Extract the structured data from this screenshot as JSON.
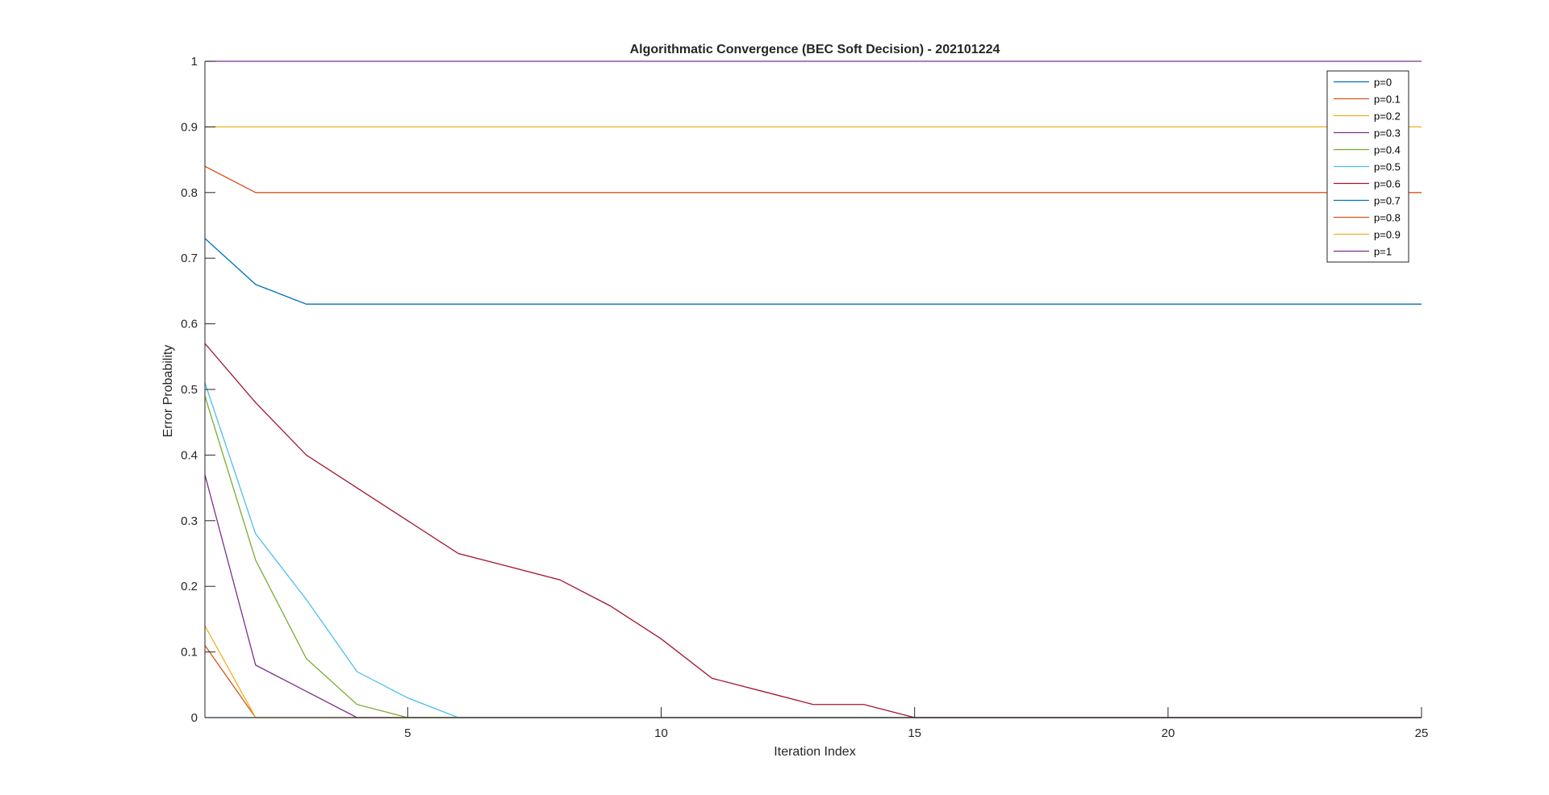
{
  "chart_data": {
    "type": "line",
    "title": "Algorithmatic Convergence (BEC Soft Decision) - 202101224",
    "xlabel": "Iteration Index",
    "ylabel": "Error Probability",
    "xlim": [
      1,
      25
    ],
    "ylim": [
      0,
      1
    ],
    "xticks": [
      5,
      10,
      15,
      20,
      25
    ],
    "xtick_labels": [
      "5",
      "10",
      "15",
      "20",
      "25"
    ],
    "yticks": [
      0,
      0.1,
      0.2,
      0.3,
      0.4,
      0.5,
      0.6,
      0.7,
      0.8,
      0.9,
      1
    ],
    "ytick_labels": [
      "0",
      "0.1",
      "0.2",
      "0.3",
      "0.4",
      "0.5",
      "0.6",
      "0.7",
      "0.8",
      "0.9",
      "1"
    ],
    "grid": false,
    "legend_position": "top-right",
    "x": [
      1,
      2,
      3,
      4,
      5,
      6,
      7,
      8,
      9,
      10,
      11,
      12,
      13,
      14,
      15,
      16,
      17,
      18,
      19,
      20,
      21,
      22,
      23,
      24,
      25
    ],
    "series": [
      {
        "name": "p=0",
        "color": "#0072BD",
        "values": [
          0,
          0,
          0,
          0,
          0,
          0,
          0,
          0,
          0,
          0,
          0,
          0,
          0,
          0,
          0,
          0,
          0,
          0,
          0,
          0,
          0,
          0,
          0,
          0,
          0
        ]
      },
      {
        "name": "p=0.1",
        "color": "#D95319",
        "values": [
          0.11,
          0,
          0,
          0,
          0,
          0,
          0,
          0,
          0,
          0,
          0,
          0,
          0,
          0,
          0,
          0,
          0,
          0,
          0,
          0,
          0,
          0,
          0,
          0,
          0
        ]
      },
      {
        "name": "p=0.2",
        "color": "#EDB120",
        "values": [
          0.14,
          0,
          0,
          0,
          0,
          0,
          0,
          0,
          0,
          0,
          0,
          0,
          0,
          0,
          0,
          0,
          0,
          0,
          0,
          0,
          0,
          0,
          0,
          0,
          0
        ]
      },
      {
        "name": "p=0.3",
        "color": "#7E2F8E",
        "values": [
          0.37,
          0.08,
          0.04,
          0,
          0,
          0,
          0,
          0,
          0,
          0,
          0,
          0,
          0,
          0,
          0,
          0,
          0,
          0,
          0,
          0,
          0,
          0,
          0,
          0,
          0
        ]
      },
      {
        "name": "p=0.4",
        "color": "#77AC30",
        "values": [
          0.49,
          0.24,
          0.09,
          0.02,
          0,
          0,
          0,
          0,
          0,
          0,
          0,
          0,
          0,
          0,
          0,
          0,
          0,
          0,
          0,
          0,
          0,
          0,
          0,
          0,
          0
        ]
      },
      {
        "name": "p=0.5",
        "color": "#4DBEEE",
        "values": [
          0.51,
          0.28,
          0.18,
          0.07,
          0.03,
          0,
          0,
          0,
          0,
          0,
          0,
          0,
          0,
          0,
          0,
          0,
          0,
          0,
          0,
          0,
          0,
          0,
          0,
          0,
          0
        ]
      },
      {
        "name": "p=0.6",
        "color": "#A2142F",
        "values": [
          0.57,
          0.48,
          0.4,
          0.35,
          0.3,
          0.25,
          0.23,
          0.21,
          0.17,
          0.12,
          0.06,
          0.04,
          0.02,
          0.02,
          0,
          0,
          0,
          0,
          0,
          0,
          0,
          0,
          0,
          0,
          0
        ]
      },
      {
        "name": "p=0.7",
        "color": "#0072BD",
        "values": [
          0.73,
          0.66,
          0.63,
          0.63,
          0.63,
          0.63,
          0.63,
          0.63,
          0.63,
          0.63,
          0.63,
          0.63,
          0.63,
          0.63,
          0.63,
          0.63,
          0.63,
          0.63,
          0.63,
          0.63,
          0.63,
          0.63,
          0.63,
          0.63,
          0.63
        ]
      },
      {
        "name": "p=0.8",
        "color": "#D95319",
        "values": [
          0.84,
          0.8,
          0.8,
          0.8,
          0.8,
          0.8,
          0.8,
          0.8,
          0.8,
          0.8,
          0.8,
          0.8,
          0.8,
          0.8,
          0.8,
          0.8,
          0.8,
          0.8,
          0.8,
          0.8,
          0.8,
          0.8,
          0.8,
          0.8,
          0.8
        ]
      },
      {
        "name": "p=0.9",
        "color": "#EDB120",
        "values": [
          0.9,
          0.9,
          0.9,
          0.9,
          0.9,
          0.9,
          0.9,
          0.9,
          0.9,
          0.9,
          0.9,
          0.9,
          0.9,
          0.9,
          0.9,
          0.9,
          0.9,
          0.9,
          0.9,
          0.9,
          0.9,
          0.9,
          0.9,
          0.9,
          0.9
        ]
      },
      {
        "name": "p=1",
        "color": "#7E2F8E",
        "values": [
          1,
          1,
          1,
          1,
          1,
          1,
          1,
          1,
          1,
          1,
          1,
          1,
          1,
          1,
          1,
          1,
          1,
          1,
          1,
          1,
          1,
          1,
          1,
          1,
          1
        ]
      }
    ]
  }
}
